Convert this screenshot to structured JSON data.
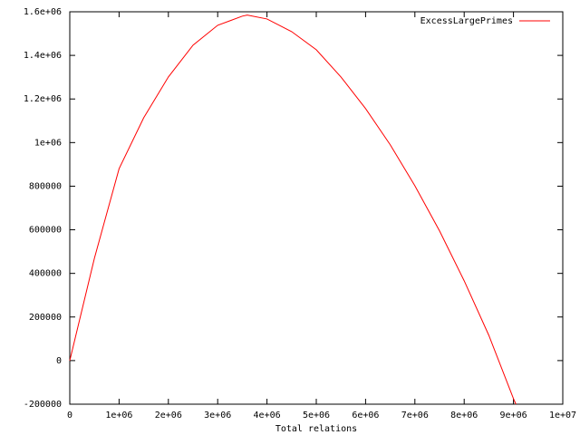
{
  "chart_data": {
    "type": "line",
    "xlabel": "Total relations",
    "x": [
      0,
      500000,
      1000000,
      1500000,
      2000000,
      2500000,
      3000000,
      3500000,
      3600000,
      4000000,
      4500000,
      5000000,
      5500000,
      6000000,
      6500000,
      7000000,
      7500000,
      8000000,
      8500000,
      9000000,
      9050000
    ],
    "series": [
      {
        "name": "ExcessLargePrimes",
        "color": "#ff0000",
        "values": [
          0,
          470000,
          880000,
          1114000,
          1301000,
          1447000,
          1538000,
          1580000,
          1585000,
          1567000,
          1509000,
          1426000,
          1301000,
          1156000,
          990000,
          802000,
          595000,
          366000,
          116000,
          -175000,
          -200000
        ]
      }
    ],
    "xlim": [
      0,
      10000000
    ],
    "xticks": [
      0,
      {
        "value": 1000000,
        "label": "1e+06"
      },
      {
        "value": 2000000,
        "label": "2e+06"
      },
      {
        "value": 3000000,
        "label": "3e+06"
      },
      {
        "value": 4000000,
        "label": "4e+06"
      },
      {
        "value": 5000000,
        "label": "5e+06"
      },
      {
        "value": 6000000,
        "label": "6e+06"
      },
      {
        "value": 7000000,
        "label": "7e+06"
      },
      {
        "value": 8000000,
        "label": "8e+06"
      },
      {
        "value": 9000000,
        "label": "9e+06"
      },
      {
        "value": 10000000,
        "label": "1e+07"
      }
    ],
    "ylim": [
      -200000,
      1600000
    ],
    "yticks": [
      -200000,
      0,
      200000,
      400000,
      600000,
      800000,
      {
        "value": 1000000,
        "label": "1e+06"
      },
      {
        "value": 1200000,
        "label": "1.2e+06"
      },
      {
        "value": 1400000,
        "label": "1.4e+06"
      },
      {
        "value": 1600000,
        "label": "1.6e+06"
      }
    ],
    "legend": "top-right",
    "grid": false
  }
}
